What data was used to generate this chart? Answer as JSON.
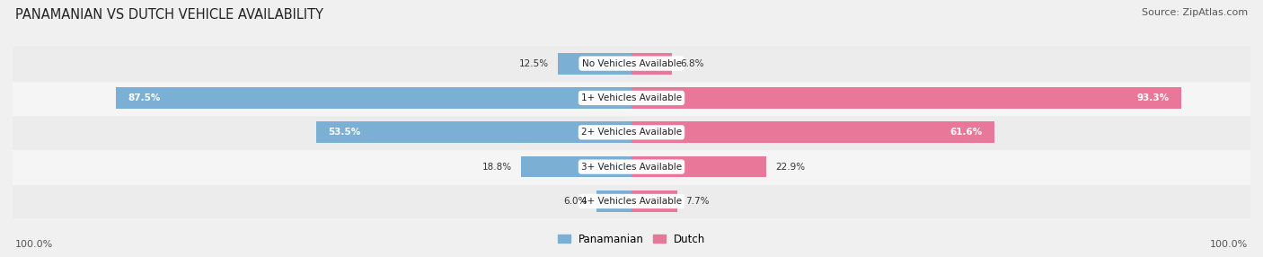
{
  "title": "PANAMANIAN VS DUTCH VEHICLE AVAILABILITY",
  "source": "Source: ZipAtlas.com",
  "categories": [
    "No Vehicles Available",
    "1+ Vehicles Available",
    "2+ Vehicles Available",
    "3+ Vehicles Available",
    "4+ Vehicles Available"
  ],
  "panamanian": [
    12.5,
    87.5,
    53.5,
    18.8,
    6.0
  ],
  "dutch": [
    6.8,
    93.3,
    61.6,
    22.9,
    7.7
  ],
  "blue_color": "#7BAFD4",
  "pink_color": "#E8779A",
  "label_blue": "Panamanian",
  "label_pink": "Dutch",
  "bar_height": 0.62,
  "figsize": [
    14.06,
    2.86
  ],
  "dpi": 100,
  "row_colors": [
    "#ECECEC",
    "#F5F5F5",
    "#ECECEC",
    "#F5F5F5",
    "#ECECEC"
  ]
}
